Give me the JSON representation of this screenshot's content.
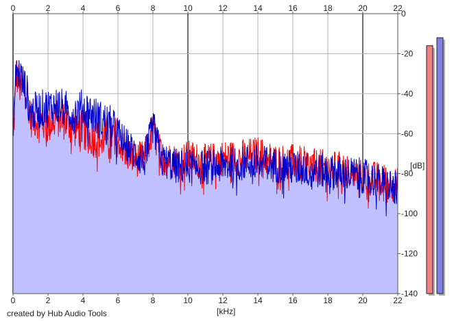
{
  "footer": {
    "credit": "created by Hub Audio Tools"
  },
  "chart_data": {
    "type": "area",
    "xlabel": "[kHz]",
    "ylabel": "[dB]",
    "xlim": [
      0,
      22
    ],
    "ylim": [
      -140,
      0
    ],
    "x_ticks": [
      0,
      2,
      4,
      6,
      8,
      10,
      12,
      14,
      16,
      18,
      20,
      22
    ],
    "y_ticks": [
      0,
      -20,
      -40,
      -60,
      -80,
      -100,
      -120,
      -140
    ],
    "x_tick_labels": [
      "0",
      "2",
      "4",
      "6",
      "8",
      "10",
      "12",
      "14",
      "16",
      "18",
      "20",
      "22"
    ],
    "y_tick_labels": [
      "0",
      "-20",
      "-40",
      "-60",
      "-80",
      "-100",
      "-120",
      "-140"
    ],
    "grid": true,
    "colors": {
      "background": "#ffffff",
      "grid": "#b0b0b0",
      "grid_major": "#707070",
      "fill": "#c0c0ff",
      "series_1": "#ff0000",
      "series_2": "#0000cc",
      "meter_1": "#f08080",
      "meter_2": "#8080e0"
    },
    "series": [
      {
        "values": [
          [
            0,
            -64
          ],
          [
            0.2,
            -30
          ],
          [
            0.5,
            -40
          ],
          [
            0.8,
            -38
          ],
          [
            1,
            -52
          ],
          [
            1.5,
            -53
          ],
          [
            2,
            -56
          ],
          [
            2.5,
            -52
          ],
          [
            3,
            -54
          ],
          [
            3.5,
            -57
          ],
          [
            4,
            -58
          ],
          [
            4.5,
            -62
          ],
          [
            5,
            -63
          ],
          [
            5.5,
            -60
          ],
          [
            6,
            -62
          ],
          [
            6.5,
            -70
          ],
          [
            7,
            -73
          ],
          [
            7.5,
            -72
          ],
          [
            8,
            -58
          ],
          [
            8.5,
            -72
          ],
          [
            9,
            -73
          ],
          [
            9.5,
            -74
          ],
          [
            10,
            -72
          ],
          [
            11,
            -74
          ],
          [
            12,
            -72
          ],
          [
            13,
            -72
          ],
          [
            14,
            -70
          ],
          [
            15,
            -74
          ],
          [
            16,
            -74
          ],
          [
            17,
            -76
          ],
          [
            18,
            -77
          ],
          [
            19,
            -78
          ],
          [
            20,
            -82
          ],
          [
            21,
            -83
          ],
          [
            22,
            -86
          ]
        ]
      },
      {
        "values": [
          [
            0,
            -55
          ],
          [
            0.2,
            -26
          ],
          [
            0.5,
            -33
          ],
          [
            0.8,
            -40
          ],
          [
            1,
            -50
          ],
          [
            1.5,
            -48
          ],
          [
            2,
            -47
          ],
          [
            2.5,
            -46
          ],
          [
            3,
            -48
          ],
          [
            3.5,
            -50
          ],
          [
            4,
            -47
          ],
          [
            4.5,
            -50
          ],
          [
            5,
            -53
          ],
          [
            5.5,
            -55
          ],
          [
            6,
            -60
          ],
          [
            6.5,
            -66
          ],
          [
            7,
            -70
          ],
          [
            7.5,
            -74
          ],
          [
            8,
            -56
          ],
          [
            8.5,
            -73
          ],
          [
            9,
            -75
          ],
          [
            9.5,
            -77
          ],
          [
            10,
            -76
          ],
          [
            11,
            -77
          ],
          [
            12,
            -76
          ],
          [
            13,
            -75
          ],
          [
            14,
            -74
          ],
          [
            15,
            -76
          ],
          [
            16,
            -77
          ],
          [
            17,
            -78
          ],
          [
            18,
            -79
          ],
          [
            19,
            -80
          ],
          [
            20,
            -81
          ],
          [
            21,
            -84
          ],
          [
            22,
            -88
          ]
        ]
      }
    ],
    "meters": [
      {
        "level_db": -16
      },
      {
        "level_db": -12
      }
    ]
  }
}
